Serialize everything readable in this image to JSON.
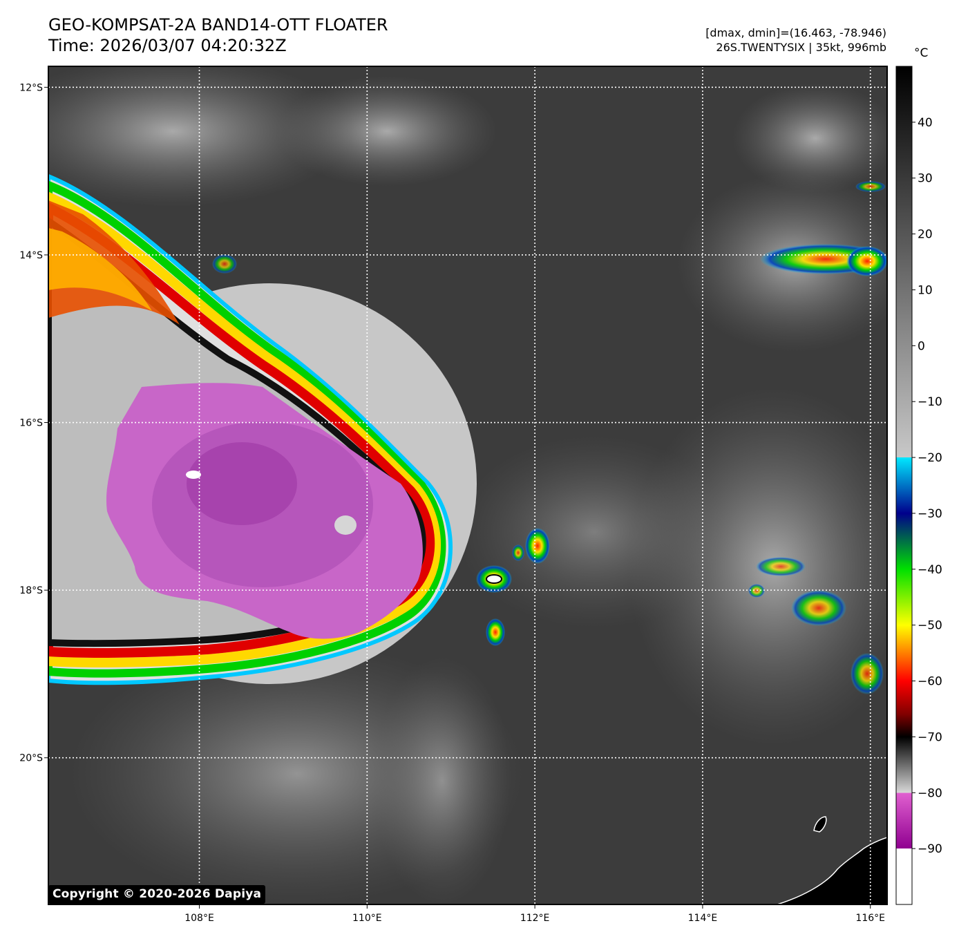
{
  "header": {
    "title": "GEO-KOMPSAT-2A BAND14-OTT FLOATER",
    "time": "Time: 2026/03/07 04:20:32Z",
    "range": "[dmax, dmin]=(16.463, -78.946)",
    "storm": "26S.TWENTYSIX | 35kt, 996mb"
  },
  "map": {
    "lon_range": [
      106.2,
      116.2
    ],
    "lat_range": [
      -11.75,
      -21.75
    ],
    "lon_ticks": [
      {
        "value": 108,
        "label": "108°E"
      },
      {
        "value": 110,
        "label": "110°E"
      },
      {
        "value": 112,
        "label": "112°E"
      },
      {
        "value": 114,
        "label": "114°E"
      },
      {
        "value": 116,
        "label": "116°E"
      }
    ],
    "lat_ticks": [
      {
        "value": -12,
        "label": "12°S"
      },
      {
        "value": -14,
        "label": "14°S"
      },
      {
        "value": -16,
        "label": "16°S"
      },
      {
        "value": -18,
        "label": "18°S"
      },
      {
        "value": -20,
        "label": "20°S"
      }
    ],
    "gridlines": true,
    "gridline_color": "#ffffff"
  },
  "colorbar": {
    "unit": "°C",
    "range": [
      -100,
      50
    ],
    "ticks": [
      {
        "value": 40,
        "label": "40"
      },
      {
        "value": 30,
        "label": "30"
      },
      {
        "value": 20,
        "label": "20"
      },
      {
        "value": 10,
        "label": "10"
      },
      {
        "value": 0,
        "label": "0"
      },
      {
        "value": -10,
        "label": "−10"
      },
      {
        "value": -20,
        "label": "−20"
      },
      {
        "value": -30,
        "label": "−30"
      },
      {
        "value": -40,
        "label": "−40"
      },
      {
        "value": -50,
        "label": "−50"
      },
      {
        "value": -60,
        "label": "−60"
      },
      {
        "value": -70,
        "label": "−70"
      },
      {
        "value": -80,
        "label": "−80"
      },
      {
        "value": -90,
        "label": "−90"
      }
    ],
    "stops": [
      {
        "value": 50,
        "color": "#000000"
      },
      {
        "value": -20,
        "color": "#c8c8c8"
      },
      {
        "value": -20,
        "color": "#00e8ff"
      },
      {
        "value": -30,
        "color": "#00008c"
      },
      {
        "value": -40,
        "color": "#00e000"
      },
      {
        "value": -50,
        "color": "#ffff00"
      },
      {
        "value": -60,
        "color": "#ff0000"
      },
      {
        "value": -66,
        "color": "#800000"
      },
      {
        "value": -70,
        "color": "#000000"
      },
      {
        "value": -80,
        "color": "#d8d8d8"
      },
      {
        "value": -80,
        "color": "#e060d0"
      },
      {
        "value": -90,
        "color": "#900090"
      },
      {
        "value": -90,
        "color": "#ffffff"
      },
      {
        "value": -100,
        "color": "#ffffff"
      }
    ]
  },
  "copyright": "Copyright © 2020-2026 Dapiya"
}
